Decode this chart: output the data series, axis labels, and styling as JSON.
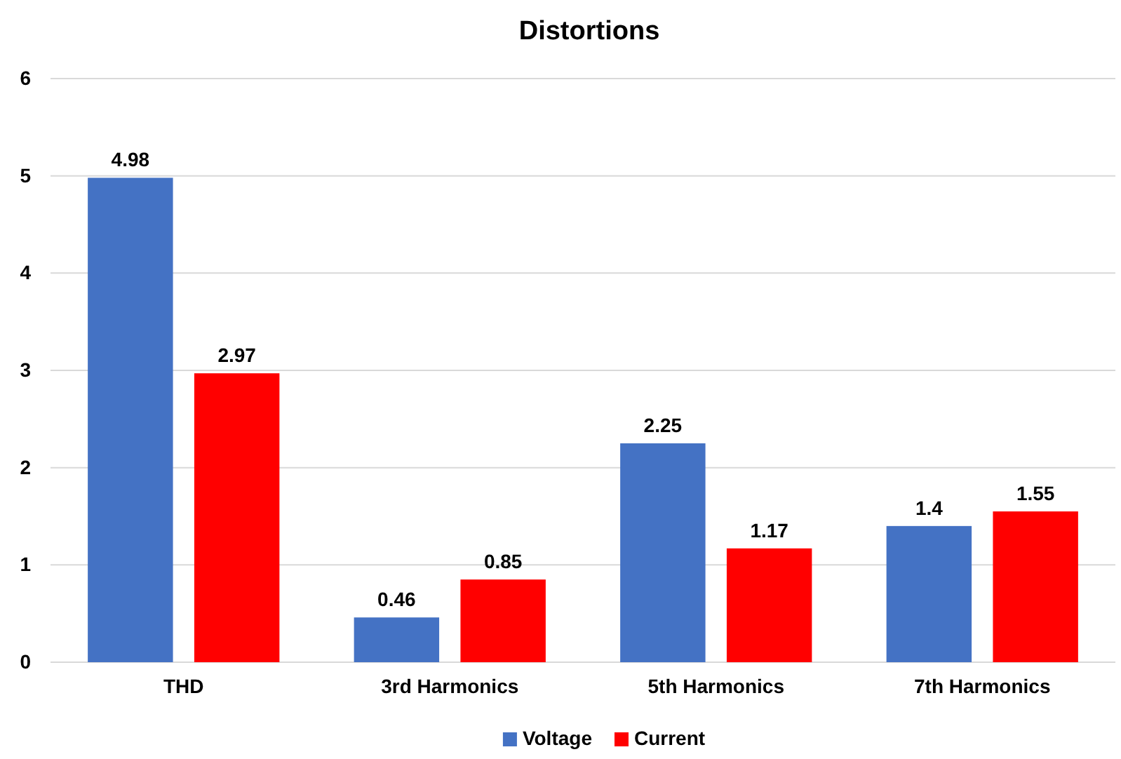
{
  "chart_data": {
    "type": "bar",
    "title": "Distortions",
    "categories": [
      "THD",
      "3rd Harmonics",
      "5th Harmonics",
      "7th Harmonics"
    ],
    "series": [
      {
        "name": "Voltage",
        "color": "#4472c4",
        "values": [
          4.98,
          0.46,
          2.25,
          1.4
        ]
      },
      {
        "name": "Current",
        "color": "#ff0000",
        "values": [
          2.97,
          0.85,
          1.17,
          1.55
        ]
      }
    ],
    "ylim": [
      0,
      6
    ],
    "yticks": [
      0,
      1,
      2,
      3,
      4,
      5,
      6
    ],
    "grid": "y",
    "legend": "bottom",
    "data_labels": true
  }
}
